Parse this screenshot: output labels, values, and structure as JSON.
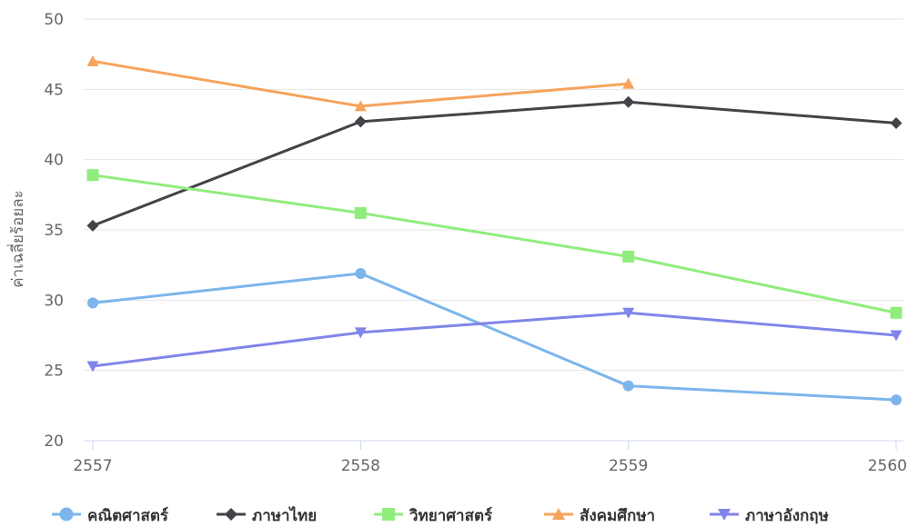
{
  "chart_data": {
    "type": "line",
    "title": "",
    "xlabel": "",
    "ylabel": "ค่าเฉลี่ยร้อยละ",
    "categories": [
      "2557",
      "2558",
      "2559",
      "2560"
    ],
    "ylim": [
      20,
      50
    ],
    "yticks": [
      20,
      25,
      30,
      35,
      40,
      45,
      50
    ],
    "grid": true,
    "legend_position": "bottom",
    "series": [
      {
        "name": "คณิตศาสตร์",
        "color": "#7cb5ec",
        "marker": "circle",
        "values": [
          29.8,
          31.9,
          23.9,
          22.9
        ]
      },
      {
        "name": "ภาษาไทย",
        "color": "#434348",
        "marker": "diamond",
        "values": [
          35.3,
          42.7,
          44.1,
          42.6
        ]
      },
      {
        "name": "วิทยาศาสตร์",
        "color": "#90ed7d",
        "marker": "square",
        "values": [
          38.9,
          36.2,
          33.1,
          29.1
        ]
      },
      {
        "name": "สังคมศึกษา",
        "color": "#f7a35c",
        "marker": "triangle",
        "values": [
          47.0,
          43.8,
          45.4,
          null
        ]
      },
      {
        "name": "ภาษาอังกฤษ",
        "color": "#8085e9",
        "marker": "triangle-down",
        "values": [
          25.3,
          27.7,
          29.1,
          27.5
        ]
      }
    ]
  }
}
